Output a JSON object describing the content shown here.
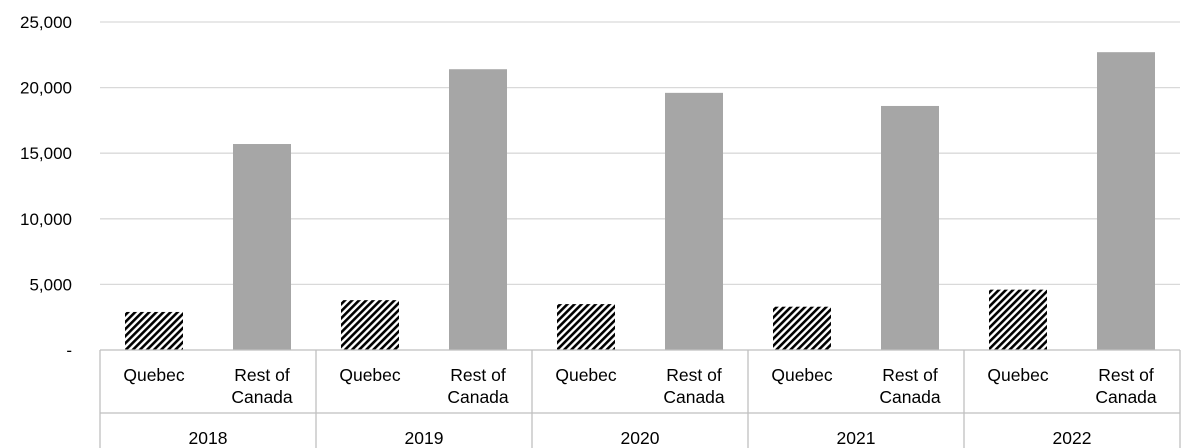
{
  "chart_data": {
    "type": "bar",
    "title": "",
    "xlabel": "",
    "ylabel": "",
    "ylim": [
      0,
      25000
    ],
    "y_ticks": [
      0,
      5000,
      10000,
      15000,
      20000,
      25000
    ],
    "y_tick_labels": [
      "-",
      "5,000",
      "10,000",
      "15,000",
      "20,000",
      "25,000"
    ],
    "grid": true,
    "legend": "none",
    "groups": [
      {
        "label": "2018",
        "bars": [
          {
            "category": "Quebec",
            "label_lines": [
              "Quebec"
            ],
            "value": 2900,
            "pattern": "hatched"
          },
          {
            "category": "Rest of Canada",
            "label_lines": [
              "Rest of",
              "Canada"
            ],
            "value": 15700,
            "pattern": "solid"
          }
        ]
      },
      {
        "label": "2019",
        "bars": [
          {
            "category": "Quebec",
            "label_lines": [
              "Quebec"
            ],
            "value": 3800,
            "pattern": "hatched"
          },
          {
            "category": "Rest of Canada",
            "label_lines": [
              "Rest of",
              "Canada"
            ],
            "value": 21400,
            "pattern": "solid"
          }
        ]
      },
      {
        "label": "2020",
        "bars": [
          {
            "category": "Quebec",
            "label_lines": [
              "Quebec"
            ],
            "value": 3500,
            "pattern": "hatched"
          },
          {
            "category": "Rest of Canada",
            "label_lines": [
              "Rest of",
              "Canada"
            ],
            "value": 19600,
            "pattern": "solid"
          }
        ]
      },
      {
        "label": "2021",
        "bars": [
          {
            "category": "Quebec",
            "label_lines": [
              "Quebec"
            ],
            "value": 3300,
            "pattern": "hatched"
          },
          {
            "category": "Rest of Canada",
            "label_lines": [
              "Rest of",
              "Canada"
            ],
            "value": 18600,
            "pattern": "solid"
          }
        ]
      },
      {
        "label": "2022",
        "bars": [
          {
            "category": "Quebec",
            "label_lines": [
              "Quebec"
            ],
            "value": 4600,
            "pattern": "hatched"
          },
          {
            "category": "Rest of Canada",
            "label_lines": [
              "Rest of",
              "Canada"
            ],
            "value": 22700,
            "pattern": "solid"
          }
        ]
      }
    ],
    "colors": {
      "hatched": "#000000",
      "solid": "#a6a6a6",
      "grid": "#d9d9d9",
      "axis": "#bfbfbf"
    }
  }
}
